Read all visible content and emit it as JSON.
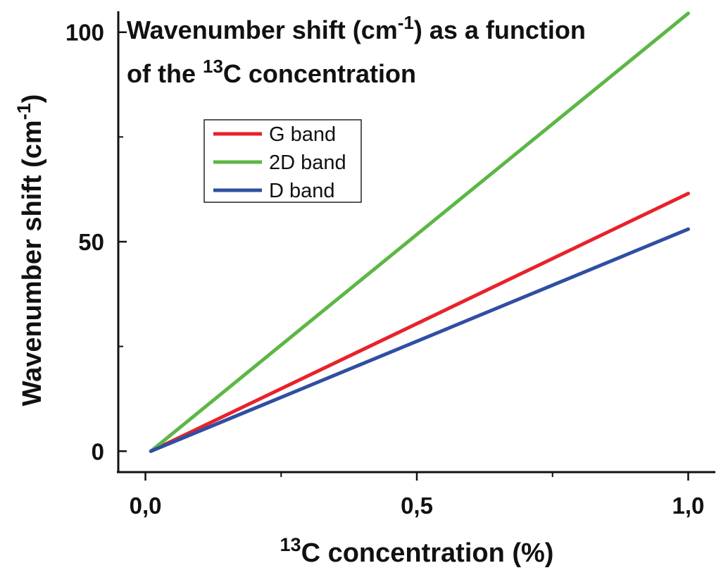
{
  "chart_data": {
    "type": "line",
    "title": {
      "line1_pre": "Wavenumber shift (cm",
      "line1_sup": "-1",
      "line1_post": ") as a function",
      "line2_pre": "of the ",
      "line2_sup": "13",
      "line2_post": "C concentration"
    },
    "xlabel": {
      "sup": "13",
      "text": "C concentration (%)"
    },
    "ylabel": {
      "pre": "Wavenumber shift (cm",
      "sup": "-1",
      "post": ")"
    },
    "xlim": [
      -0.05,
      1.05
    ],
    "ylim": [
      -5,
      105
    ],
    "xticks": [
      {
        "value": 0.0,
        "label": "0,0"
      },
      {
        "value": 0.5,
        "label": "0,5"
      },
      {
        "value": 1.0,
        "label": "1,0"
      }
    ],
    "xminor": [
      0.25,
      0.75
    ],
    "yticks": [
      {
        "value": 0,
        "label": "0"
      },
      {
        "value": 50,
        "label": "50"
      },
      {
        "value": 100,
        "label": "100"
      }
    ],
    "yminor": [
      25,
      75
    ],
    "grid": false,
    "legend_position": "upper-left",
    "series": [
      {
        "name": "G band",
        "color": "#e8222b",
        "x": [
          0.01,
          1.0
        ],
        "y": [
          0,
          61.5
        ]
      },
      {
        "name": "2D band",
        "color": "#5cb745",
        "x": [
          0.01,
          1.0
        ],
        "y": [
          0,
          104.5
        ]
      },
      {
        "name": "D band",
        "color": "#2f4fa2",
        "x": [
          0.01,
          1.0
        ],
        "y": [
          0,
          53
        ]
      }
    ]
  }
}
